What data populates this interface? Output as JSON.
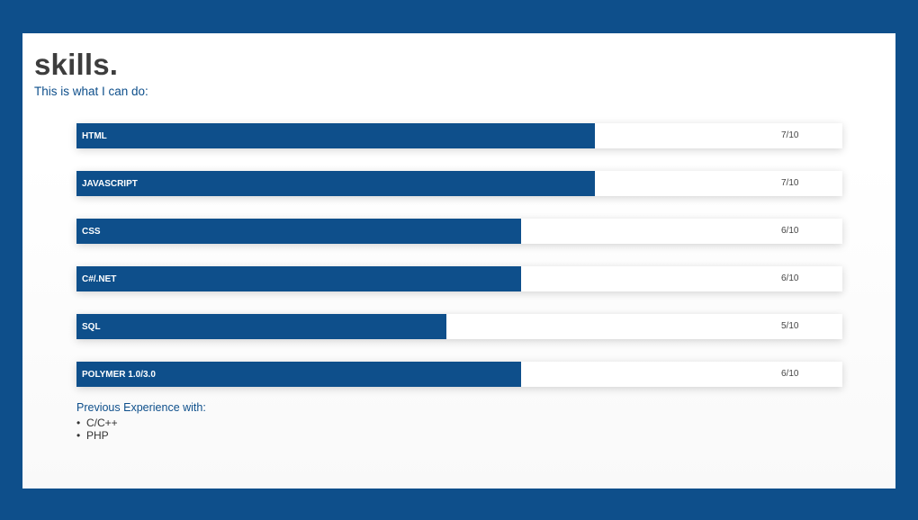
{
  "header": {
    "title": "skills.",
    "subtitle": "This is what I can do:"
  },
  "skills": [
    {
      "name": "HTML",
      "score_text": "7/10",
      "score": 7,
      "max": 10
    },
    {
      "name": "JAVASCRIPT",
      "score_text": "7/10",
      "score": 7,
      "max": 10
    },
    {
      "name": "CSS",
      "score_text": "6/10",
      "score": 6,
      "max": 10
    },
    {
      "name": "C#/.NET",
      "score_text": "6/10",
      "score": 6,
      "max": 10
    },
    {
      "name": "SQL",
      "score_text": "5/10",
      "score": 5,
      "max": 10
    },
    {
      "name": "POLYMER 1.0/3.0",
      "score_text": "6/10",
      "score": 6,
      "max": 10
    }
  ],
  "previous_experience": {
    "heading": "Previous Experience with:",
    "items": [
      "C/C++",
      "PHP"
    ]
  },
  "colors": {
    "background": "#0e4f8b",
    "bar_fill": "#0e4f8b",
    "title_text": "#3d3d3d"
  }
}
